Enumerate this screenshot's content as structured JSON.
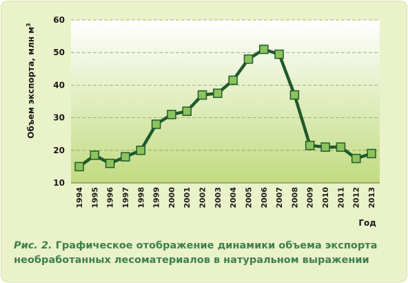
{
  "chart_data": {
    "type": "line",
    "xlabel": "Год",
    "ylabel": "Объем экспорта, млн м",
    "ylabel_sup": "3",
    "ylim": [
      10,
      60
    ],
    "yticks": [
      10,
      20,
      30,
      40,
      50,
      60
    ],
    "grid": true,
    "categories": [
      "1994",
      "1995",
      "1996",
      "1997",
      "1998",
      "1999",
      "2000",
      "2001",
      "2002",
      "2003",
      "2004",
      "2005",
      "2006",
      "2007",
      "2008",
      "2009",
      "2010",
      "2011",
      "2012",
      "2013"
    ],
    "values": [
      15,
      18.5,
      16,
      18,
      20,
      28,
      31,
      32,
      37,
      37.5,
      41.5,
      48,
      51,
      49.5,
      37,
      21.5,
      21,
      21,
      17.5,
      19
    ],
    "line_color": "#1f5a2a",
    "marker_color": "#8dc25c"
  },
  "caption": {
    "lead": "Рис. 2.",
    "line1": "Графическое отображение динамики объема экспорта",
    "line2": "необработанных лесоматериалов в натуральном выражении"
  }
}
